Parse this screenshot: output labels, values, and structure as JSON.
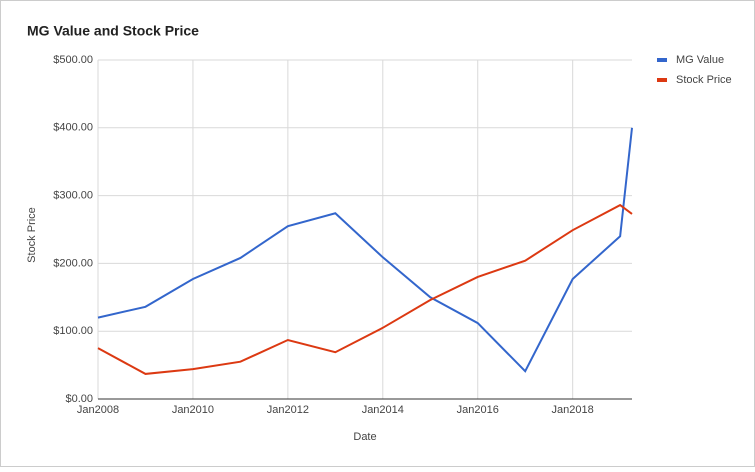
{
  "chart_data": {
    "type": "line",
    "title": "MG Value and Stock Price",
    "x_label": "Date",
    "y_label": "Stock Price",
    "x": [
      "2008-01",
      "2009-01",
      "2010-01",
      "2011-01",
      "2012-01",
      "2013-01",
      "2014-01",
      "2015-01",
      "2016-01",
      "2017-01",
      "2018-01",
      "2019-01",
      "2019-04"
    ],
    "series": [
      {
        "name": "MG Value",
        "color": "#3366cc",
        "values": [
          120,
          136,
          177,
          208,
          255,
          274,
          209,
          150,
          112,
          41,
          177,
          240,
          400
        ]
      },
      {
        "name": "Stock Price",
        "color": "#dc3912",
        "values": [
          75,
          37,
          44,
          55,
          87,
          69,
          105,
          146,
          180,
          204,
          249,
          286,
          273
        ]
      }
    ],
    "xlim": [
      "2008-01",
      "2019-04"
    ],
    "xticks": [
      {
        "value": "2008-01",
        "label": "Jan2008"
      },
      {
        "value": "2010-01",
        "label": "Jan2010"
      },
      {
        "value": "2012-01",
        "label": "Jan2012"
      },
      {
        "value": "2014-01",
        "label": "Jan2014"
      },
      {
        "value": "2016-01",
        "label": "Jan2016"
      },
      {
        "value": "2018-01",
        "label": "Jan2018"
      }
    ],
    "ylim": [
      0,
      500
    ],
    "yticks": [
      {
        "value": 0,
        "label": "$0.00"
      },
      {
        "value": 100,
        "label": "$100.00"
      },
      {
        "value": 200,
        "label": "$200.00"
      },
      {
        "value": 300,
        "label": "$300.00"
      },
      {
        "value": 400,
        "label": "$400.00"
      },
      {
        "value": 500,
        "label": "$500.00"
      }
    ],
    "grid": true,
    "legend": "right"
  }
}
